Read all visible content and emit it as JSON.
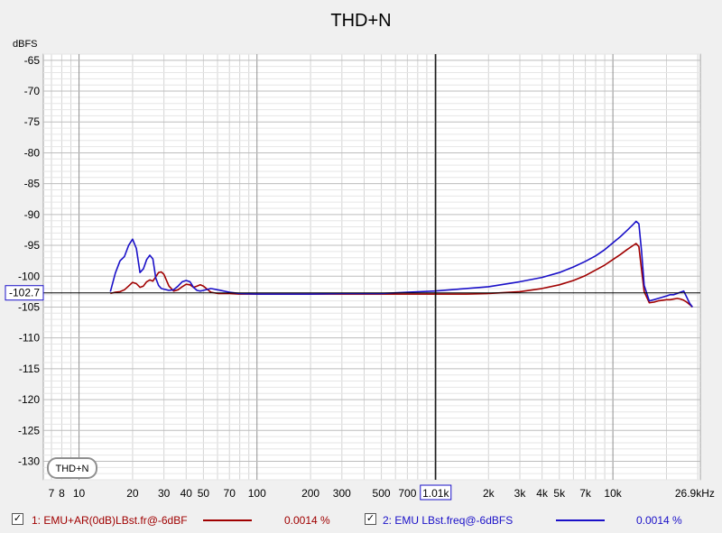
{
  "chart_data": {
    "type": "line",
    "title": "THD+N",
    "ylabel": "dBFS",
    "x_scale": "log",
    "xlim": [
      6.3,
      31000
    ],
    "ylim": [
      -133,
      -64
    ],
    "y_ticks": [
      -65,
      -70,
      -75,
      -80,
      -85,
      -90,
      -95,
      -100,
      -105,
      -110,
      -115,
      -120,
      -125,
      -130
    ],
    "y_tick_labels": [
      "-65",
      "-70",
      "-75",
      "-80",
      "-85",
      "-90",
      "-95",
      "-100",
      "-105",
      "-110",
      "-115",
      "-120",
      "-125",
      "-130"
    ],
    "x_ticks": [
      7,
      8,
      10,
      20,
      30,
      40,
      50,
      70,
      100,
      200,
      300,
      500,
      700,
      1010,
      2000,
      3000,
      4000,
      5000,
      7000,
      10000,
      26900
    ],
    "x_tick_labels": [
      "7",
      "8",
      "10",
      "20",
      "30",
      "40",
      "50",
      "70",
      "100",
      "200",
      "300",
      "500",
      "700",
      "1.01k",
      "2k",
      "3k",
      "4k",
      "5k",
      "7k",
      "10k",
      "26.9kHz"
    ],
    "grid": true,
    "cursor": {
      "x": 1010,
      "y": -102.7,
      "x_label": "1.01k",
      "y_label": "-102.7"
    },
    "legend_box_label": "THD+N",
    "series": [
      {
        "name": "1: EMU+AR(0dB)LBst.fr@-6dBF",
        "color": "#a00000",
        "value_text": "0.0014 %",
        "x": [
          15,
          16,
          17,
          18,
          19,
          20,
          21,
          22,
          23,
          24,
          25,
          26,
          27,
          28,
          29,
          30,
          32,
          34,
          36,
          38,
          40,
          42,
          44,
          46,
          48,
          50,
          55,
          60,
          70,
          80,
          100,
          150,
          200,
          300,
          500,
          700,
          1000,
          1500,
          2000,
          3000,
          4000,
          5000,
          6000,
          7000,
          8000,
          9000,
          10000,
          11000,
          12000,
          13000,
          13500,
          14000,
          14500,
          15000,
          16000,
          17000,
          18000,
          19000,
          20000,
          21000,
          22000,
          23000,
          24000,
          25000,
          26000,
          27000,
          28000
        ],
        "y": [
          -102.8,
          -102.6,
          -102.5,
          -102.2,
          -101.6,
          -101.0,
          -101.2,
          -101.8,
          -101.6,
          -100.9,
          -100.6,
          -100.8,
          -100.1,
          -99.4,
          -99.3,
          -99.7,
          -101.6,
          -102.4,
          -102.2,
          -101.7,
          -101.3,
          -101.4,
          -101.8,
          -101.6,
          -101.4,
          -101.6,
          -102.6,
          -102.8,
          -102.8,
          -102.9,
          -102.9,
          -102.9,
          -102.9,
          -102.9,
          -102.9,
          -102.9,
          -102.9,
          -102.9,
          -102.8,
          -102.5,
          -102.0,
          -101.4,
          -100.7,
          -99.9,
          -99.0,
          -98.2,
          -97.3,
          -96.5,
          -95.7,
          -95.0,
          -94.7,
          -95.2,
          -99.0,
          -102.5,
          -104.3,
          -104.2,
          -104.0,
          -103.9,
          -103.8,
          -103.8,
          -103.7,
          -103.6,
          -103.7,
          -103.9,
          -104.2,
          -104.6,
          -105.0
        ]
      },
      {
        "name": "2: EMU LBst.freq@-6dBFS",
        "color": "#1a10c8",
        "value_text": "0.0014 %",
        "x": [
          15,
          16,
          17,
          18,
          19,
          20,
          21,
          22,
          23,
          24,
          25,
          26,
          27,
          28,
          29,
          30,
          32,
          34,
          36,
          38,
          40,
          42,
          44,
          46,
          48,
          50,
          55,
          60,
          70,
          80,
          100,
          150,
          200,
          300,
          500,
          700,
          1000,
          1500,
          2000,
          3000,
          4000,
          5000,
          6000,
          7000,
          8000,
          9000,
          10000,
          11000,
          12000,
          13000,
          13500,
          14000,
          14500,
          15000,
          16000,
          17000,
          18000,
          19000,
          20000,
          21000,
          22000,
          23000,
          24000,
          25000,
          26000,
          27000,
          28000
        ],
        "y": [
          -102.5,
          -99.5,
          -97.5,
          -96.8,
          -95.0,
          -94.0,
          -95.5,
          -99.4,
          -98.8,
          -97.3,
          -96.6,
          -97.2,
          -100.3,
          -101.5,
          -102.0,
          -102.1,
          -102.3,
          -102.2,
          -101.6,
          -100.9,
          -100.7,
          -100.9,
          -101.8,
          -102.3,
          -102.4,
          -102.3,
          -102.0,
          -102.2,
          -102.6,
          -102.8,
          -102.9,
          -102.9,
          -102.9,
          -102.8,
          -102.8,
          -102.6,
          -102.4,
          -102.0,
          -101.7,
          -100.9,
          -100.2,
          -99.4,
          -98.5,
          -97.6,
          -96.7,
          -95.7,
          -94.6,
          -93.6,
          -92.6,
          -91.6,
          -91.1,
          -91.5,
          -96.0,
          -101.5,
          -104.0,
          -103.8,
          -103.6,
          -103.4,
          -103.2,
          -103.0,
          -103.0,
          -102.8,
          -102.6,
          -102.4,
          -103.4,
          -104.4,
          -105.0
        ]
      }
    ]
  }
}
